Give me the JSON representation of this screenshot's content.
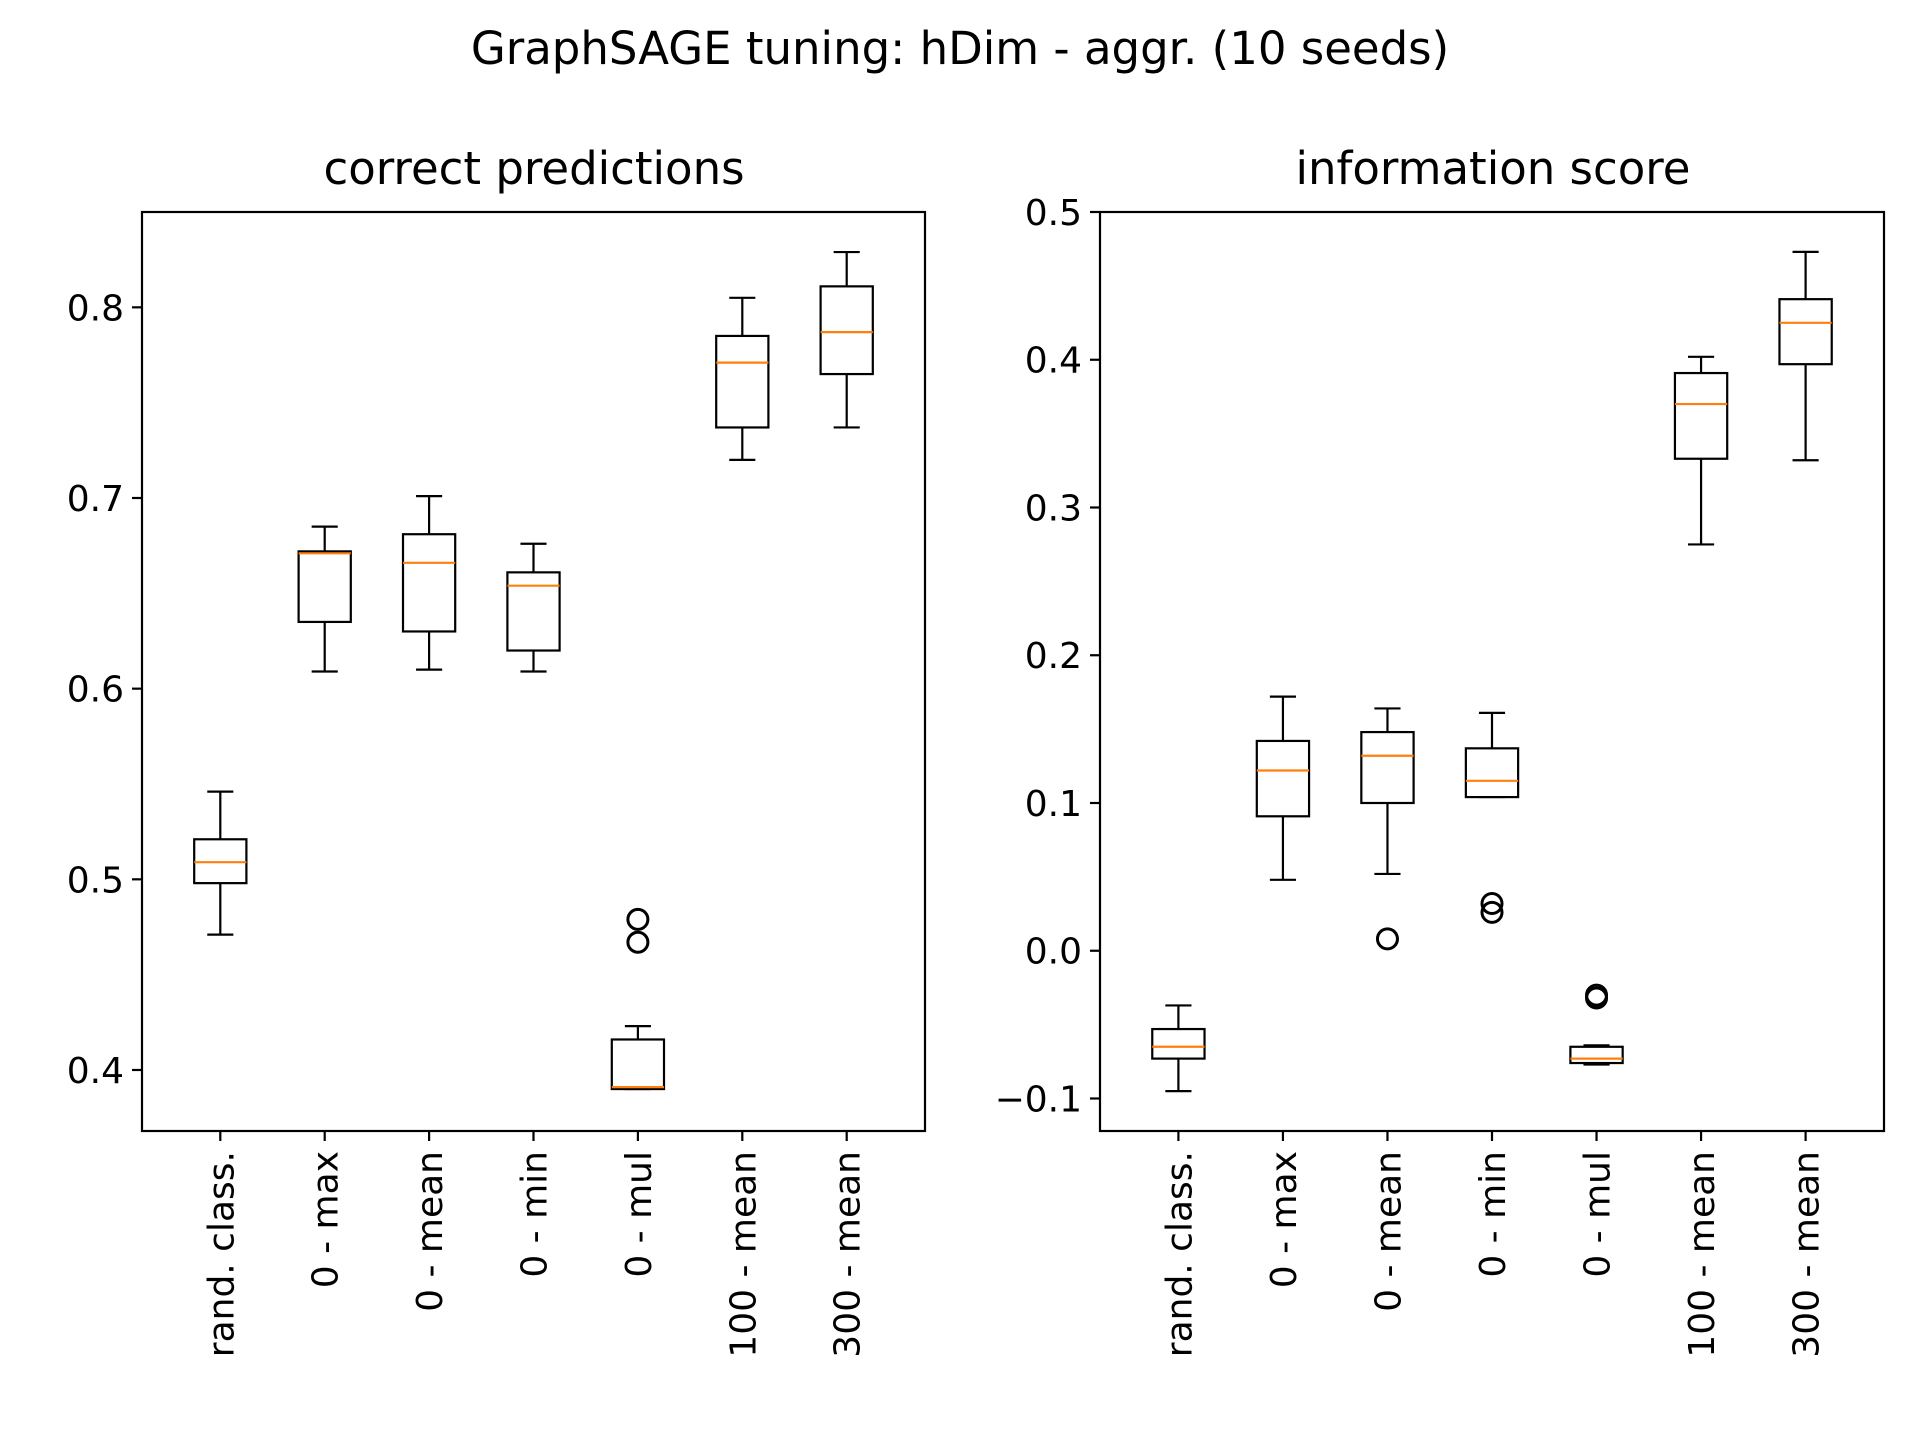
{
  "figure": {
    "title": "GraphSAGE tuning: hDim - aggr. (10 seeds)"
  },
  "colors": {
    "box": "#000000",
    "median": "#ff7f0e",
    "background": "#ffffff"
  },
  "chart_data": [
    {
      "type": "box",
      "title": "correct predictions",
      "xlabel": "",
      "ylabel": "",
      "ylim": [
        0.368,
        0.85
      ],
      "yticks": [
        0.4,
        0.5,
        0.6,
        0.7,
        0.8
      ],
      "ytick_labels": [
        "0.4",
        "0.5",
        "0.6",
        "0.7",
        "0.8"
      ],
      "categories": [
        "rand. class.",
        "0 - max",
        "0 - mean",
        "0 - min",
        "0 - mul",
        "100 - mean",
        "300 - mean"
      ],
      "boxes": [
        {
          "whislo": 0.471,
          "q1": 0.498,
          "med": 0.509,
          "q3": 0.521,
          "whishi": 0.546,
          "fliers": []
        },
        {
          "whislo": 0.609,
          "q1": 0.635,
          "med": 0.671,
          "q3": 0.672,
          "whishi": 0.685,
          "fliers": []
        },
        {
          "whislo": 0.61,
          "q1": 0.63,
          "med": 0.666,
          "q3": 0.681,
          "whishi": 0.701,
          "fliers": []
        },
        {
          "whislo": 0.609,
          "q1": 0.62,
          "med": 0.654,
          "q3": 0.661,
          "whishi": 0.676,
          "fliers": []
        },
        {
          "whislo": 0.39,
          "q1": 0.39,
          "med": 0.391,
          "q3": 0.416,
          "whishi": 0.423,
          "fliers": [
            0.467,
            0.479
          ]
        },
        {
          "whislo": 0.72,
          "q1": 0.737,
          "med": 0.771,
          "q3": 0.785,
          "whishi": 0.805,
          "fliers": []
        },
        {
          "whislo": 0.737,
          "q1": 0.765,
          "med": 0.787,
          "q3": 0.811,
          "whishi": 0.829,
          "fliers": []
        }
      ]
    },
    {
      "type": "box",
      "title": "information score",
      "xlabel": "",
      "ylabel": "",
      "ylim": [
        -0.122,
        0.5
      ],
      "yticks": [
        -0.1,
        0.0,
        0.1,
        0.2,
        0.3,
        0.4,
        0.5
      ],
      "ytick_labels": [
        "−0.1",
        "0.0",
        "0.1",
        "0.2",
        "0.3",
        "0.4",
        "0.5"
      ],
      "categories": [
        "rand. class.",
        "0 - max",
        "0 - mean",
        "0 - min",
        "0 - mul",
        "100 - mean",
        "300 - mean"
      ],
      "boxes": [
        {
          "whislo": -0.095,
          "q1": -0.073,
          "med": -0.065,
          "q3": -0.053,
          "whishi": -0.037,
          "fliers": []
        },
        {
          "whislo": 0.048,
          "q1": 0.091,
          "med": 0.122,
          "q3": 0.142,
          "whishi": 0.172,
          "fliers": []
        },
        {
          "whislo": 0.052,
          "q1": 0.1,
          "med": 0.132,
          "q3": 0.148,
          "whishi": 0.164,
          "fliers": [
            0.008
          ]
        },
        {
          "whislo": 0.104,
          "q1": 0.104,
          "med": 0.115,
          "q3": 0.137,
          "whishi": 0.161,
          "fliers": [
            0.026,
            0.032
          ]
        },
        {
          "whislo": -0.077,
          "q1": -0.076,
          "med": -0.073,
          "q3": -0.065,
          "whishi": -0.064,
          "fliers": [
            -0.032,
            -0.03
          ]
        },
        {
          "whislo": 0.275,
          "q1": 0.333,
          "med": 0.37,
          "q3": 0.391,
          "whishi": 0.402,
          "fliers": []
        },
        {
          "whislo": 0.332,
          "q1": 0.397,
          "med": 0.425,
          "q3": 0.441,
          "whishi": 0.473,
          "fliers": []
        }
      ]
    }
  ]
}
